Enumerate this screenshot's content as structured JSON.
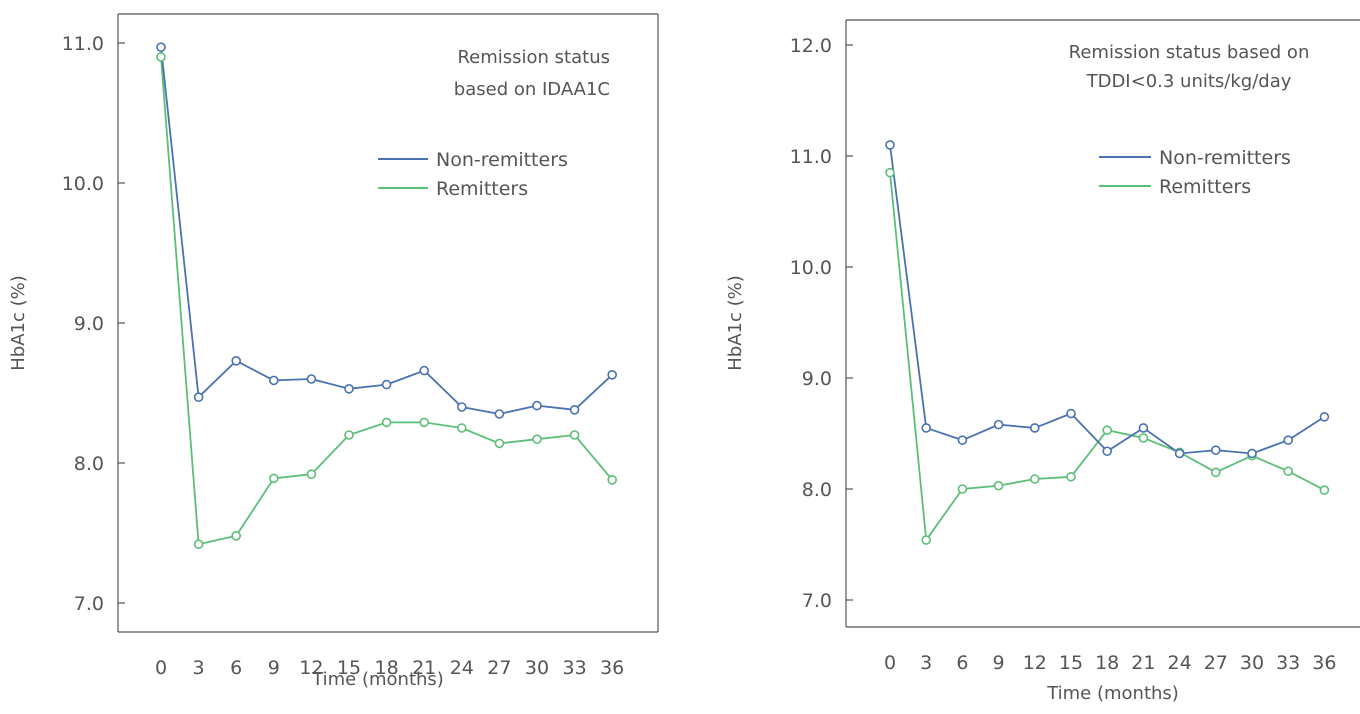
{
  "colors": {
    "non_remitters": "#4a72b0",
    "remitters": "#5cbf78",
    "axis": "#555555"
  },
  "chart_data": [
    {
      "type": "line",
      "title": "",
      "annotation": [
        "Remission status",
        "based on IDAA1C"
      ],
      "xlabel": "Time (months)",
      "ylabel": "HbA1c (%)",
      "x": [
        0,
        3,
        6,
        9,
        12,
        15,
        18,
        21,
        24,
        27,
        30,
        33,
        36
      ],
      "x_ticks": [
        "0",
        "3",
        "6",
        "9",
        "12",
        "15",
        "18",
        "21",
        "24",
        "27",
        "30",
        "33",
        "36"
      ],
      "y_ticks": [
        "7.0",
        "8.0",
        "9.0",
        "10.0",
        "11.0"
      ],
      "ylim": [
        6.8,
        11.3
      ],
      "grid": false,
      "legend_position": "top-right",
      "series": [
        {
          "name": "Non-remitters",
          "color": "#4a72b0",
          "values": [
            10.97,
            8.47,
            8.73,
            8.59,
            8.6,
            8.53,
            8.56,
            8.66,
            8.4,
            8.35,
            8.41,
            8.38,
            8.63
          ]
        },
        {
          "name": "Remitters",
          "color": "#5cbf78",
          "values": [
            10.9,
            7.42,
            7.48,
            7.89,
            7.92,
            8.2,
            8.29,
            8.29,
            8.25,
            8.14,
            8.17,
            8.2,
            7.88
          ]
        }
      ]
    },
    {
      "type": "line",
      "title": "",
      "annotation": [
        "Remission status based on",
        "TDDI<0.3 units/kg/day"
      ],
      "xlabel": "Time (months)",
      "ylabel": "HbA1c (%)",
      "x": [
        0,
        3,
        6,
        9,
        12,
        15,
        18,
        21,
        24,
        27,
        30,
        33,
        36
      ],
      "x_ticks": [
        "0",
        "3",
        "6",
        "9",
        "12",
        "15",
        "18",
        "21",
        "24",
        "27",
        "30",
        "33",
        "36"
      ],
      "y_ticks": [
        "7.0",
        "8.0",
        "9.0",
        "10.0",
        "11.0",
        "12.0"
      ],
      "ylim": [
        6.75,
        12.3
      ],
      "grid": false,
      "legend_position": "top-right",
      "series": [
        {
          "name": "Non-remitters",
          "color": "#4a72b0",
          "values": [
            11.1,
            8.55,
            8.44,
            8.58,
            8.55,
            8.68,
            8.34,
            8.55,
            8.32,
            8.35,
            8.32,
            8.44,
            8.65
          ]
        },
        {
          "name": "Remitters",
          "color": "#5cbf78",
          "values": [
            10.85,
            7.54,
            8.0,
            8.03,
            8.09,
            8.11,
            8.53,
            8.46,
            8.33,
            8.15,
            8.3,
            8.16,
            7.99
          ]
        }
      ]
    }
  ]
}
